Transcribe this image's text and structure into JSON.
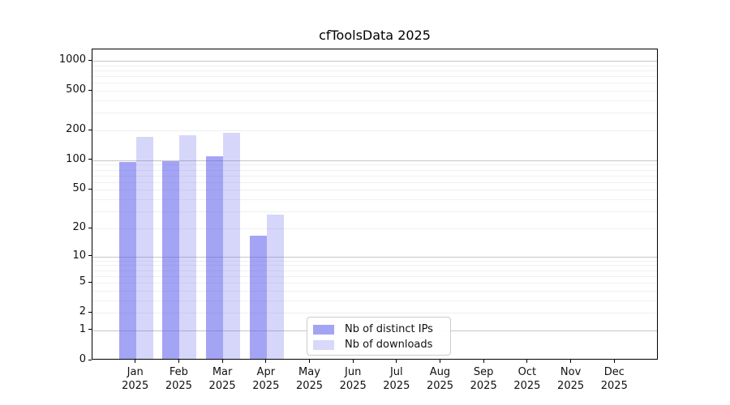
{
  "title": "cfToolsData 2025",
  "legend": {
    "entries": [
      {
        "label": "Nb of distinct IPs",
        "swatch_color": "#a4a4f4"
      },
      {
        "label": "Nb of downloads",
        "swatch_color": "#d7d8fa"
      }
    ],
    "position": "lower center"
  },
  "colors": {
    "bar_dark_fill": "rgba(92,92,235,0.56)",
    "bar_light_fill": "rgba(92,92,235,0.25)",
    "major_gridline": "#c6c6c6",
    "minor_gridline": "#f0f0f0",
    "axis": "#000000",
    "background": "#ffffff"
  },
  "chart_data": {
    "type": "bar",
    "title": "cfToolsData 2025",
    "categories": [
      "Jan",
      "Feb",
      "Mar",
      "Apr",
      "May",
      "Jun",
      "Jul",
      "Aug",
      "Sep",
      "Oct",
      "Nov",
      "Dec"
    ],
    "year_label": "2025",
    "series": [
      {
        "name": "Nb of distinct IPs",
        "color": "#a4a4f4",
        "values": [
          92,
          94,
          106,
          16,
          0,
          0,
          0,
          0,
          0,
          0,
          0,
          0
        ]
      },
      {
        "name": "Nb of downloads",
        "color": "#d7d8fa",
        "values": [
          166,
          171,
          182,
          27,
          0,
          0,
          0,
          0,
          0,
          0,
          0,
          0
        ]
      }
    ],
    "xlabel": "",
    "ylabel": "",
    "y_ticks": [
      0,
      1,
      2,
      5,
      10,
      20,
      50,
      100,
      200,
      500,
      1000
    ],
    "major_gridlines": [
      1,
      10,
      100,
      1000
    ],
    "scale": "log1p",
    "ylim": [
      0,
      1300
    ],
    "grid": true,
    "legend_position": "lower center"
  }
}
